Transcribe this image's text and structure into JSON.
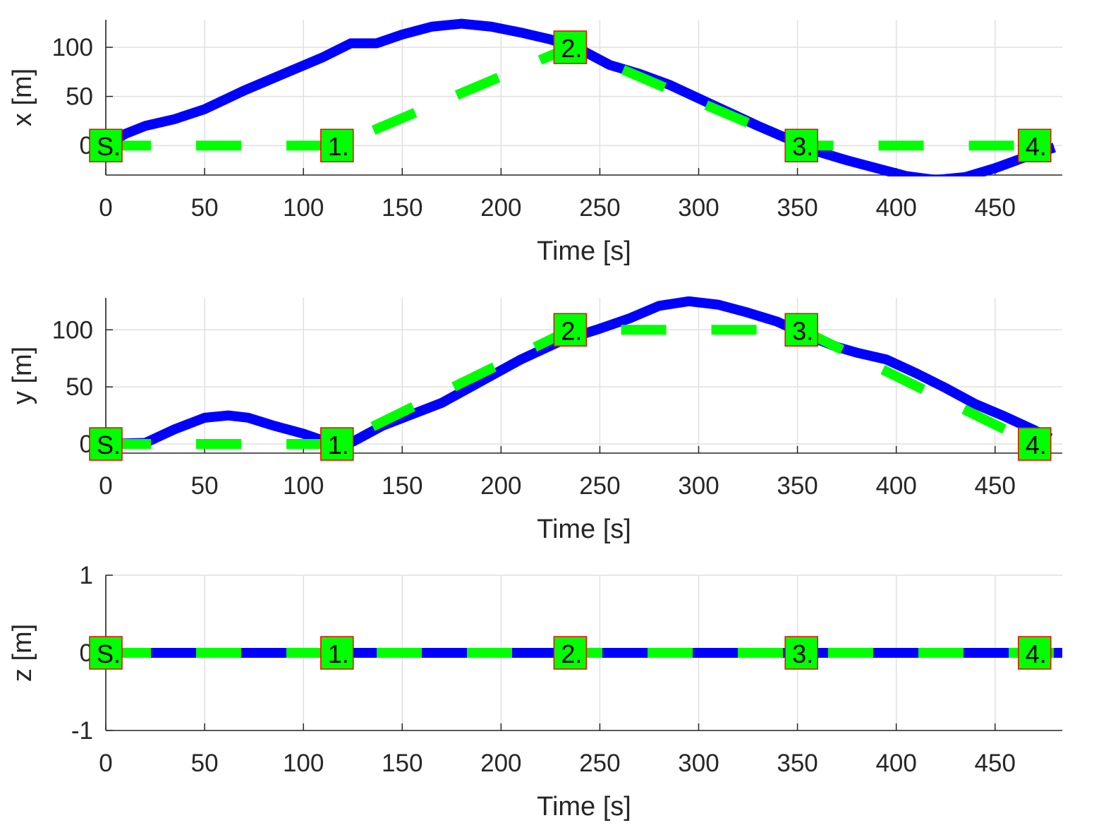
{
  "colors": {
    "actual": "#0000ff",
    "reference": "#00ff00",
    "marker_fill": "#00ff00",
    "marker_edge": "#ff0000",
    "grid": "#e0e0e0",
    "axis": "#262626"
  },
  "chart_data": [
    {
      "type": "line",
      "ylabel": "x [m]",
      "xlabel": "Time [s]",
      "xlim": [
        0,
        484
      ],
      "ylim": [
        -30,
        128
      ],
      "xticks": [
        0,
        50,
        100,
        150,
        200,
        250,
        300,
        350,
        400,
        450
      ],
      "yticks": [
        0,
        50,
        100
      ],
      "ytick_labels": [
        "0",
        "50",
        "100"
      ],
      "grid": true,
      "series": [
        {
          "style": "solid-blue",
          "x": [
            0,
            10,
            20,
            35,
            50,
            70,
            90,
            110,
            124,
            137,
            150,
            165,
            180,
            195,
            210,
            225,
            240,
            255,
            270,
            285,
            300,
            315,
            330,
            345,
            360,
            375,
            390,
            405,
            420,
            435,
            450,
            465,
            480
          ],
          "y": [
            0,
            12,
            20,
            27,
            37,
            56,
            73,
            90,
            104,
            104,
            113,
            121,
            124,
            121,
            115,
            108,
            98,
            82,
            73,
            62,
            48,
            34,
            20,
            7,
            -6,
            -15,
            -23,
            -31,
            -35,
            -32,
            -23,
            -12,
            -2
          ]
        },
        {
          "style": "dashed-green",
          "x": [
            0,
            117,
            235,
            352,
            470
          ],
          "y": [
            0,
            0,
            100,
            0,
            0
          ]
        }
      ],
      "waypoints": [
        {
          "label": "S.",
          "x": 0,
          "y": 0
        },
        {
          "label": "1.",
          "x": 117,
          "y": 0
        },
        {
          "label": "2.",
          "x": 235,
          "y": 100
        },
        {
          "label": "3.",
          "x": 352,
          "y": 0
        },
        {
          "label": "4.",
          "x": 470,
          "y": 0
        }
      ]
    },
    {
      "type": "line",
      "ylabel": "y [m]",
      "xlabel": "Time [s]",
      "xlim": [
        0,
        484
      ],
      "ylim": [
        -8,
        128
      ],
      "xticks": [
        0,
        50,
        100,
        150,
        200,
        250,
        300,
        350,
        400,
        450
      ],
      "yticks": [
        0,
        50,
        100
      ],
      "ytick_labels": [
        "0",
        "50",
        "100"
      ],
      "grid": true,
      "series": [
        {
          "style": "solid-blue",
          "x": [
            0,
            20,
            35,
            50,
            62,
            72,
            85,
            100,
            115,
            125,
            140,
            155,
            170,
            190,
            210,
            230,
            250,
            265,
            280,
            295,
            310,
            325,
            340,
            355,
            370,
            380,
            395,
            410,
            425,
            440,
            455,
            470,
            478
          ],
          "y": [
            0,
            1,
            13,
            23,
            25,
            23,
            16,
            9,
            0,
            2,
            16,
            26,
            36,
            55,
            74,
            90,
            101,
            110,
            121,
            125,
            122,
            115,
            107,
            95,
            85,
            80,
            74,
            62,
            49,
            35,
            24,
            12,
            5
          ]
        },
        {
          "style": "dashed-green",
          "x": [
            0,
            117,
            235,
            352,
            470
          ],
          "y": [
            0,
            0,
            100,
            100,
            0
          ]
        }
      ],
      "waypoints": [
        {
          "label": "S.",
          "x": 0,
          "y": 0
        },
        {
          "label": "1.",
          "x": 117,
          "y": 0
        },
        {
          "label": "2.",
          "x": 235,
          "y": 100
        },
        {
          "label": "3.",
          "x": 352,
          "y": 100
        },
        {
          "label": "4.",
          "x": 470,
          "y": 0
        }
      ]
    },
    {
      "type": "line",
      "ylabel": "z [m]",
      "xlabel": "Time [s]",
      "xlim": [
        0,
        484
      ],
      "ylim": [
        -1,
        1
      ],
      "xticks": [
        0,
        50,
        100,
        150,
        200,
        250,
        300,
        350,
        400,
        450
      ],
      "yticks": [
        -1,
        0,
        1
      ],
      "ytick_labels": [
        "-1",
        "0",
        "1"
      ],
      "grid": true,
      "series": [
        {
          "style": "solid-blue",
          "x": [
            0,
            484
          ],
          "y": [
            0,
            0
          ]
        },
        {
          "style": "dashed-green",
          "x": [
            0,
            484
          ],
          "y": [
            0,
            0
          ]
        }
      ],
      "waypoints": [
        {
          "label": "S.",
          "x": 0,
          "y": 0
        },
        {
          "label": "1.",
          "x": 117,
          "y": 0
        },
        {
          "label": "2.",
          "x": 235,
          "y": 0
        },
        {
          "label": "3.",
          "x": 352,
          "y": 0
        },
        {
          "label": "4.",
          "x": 470,
          "y": 0
        }
      ]
    }
  ]
}
